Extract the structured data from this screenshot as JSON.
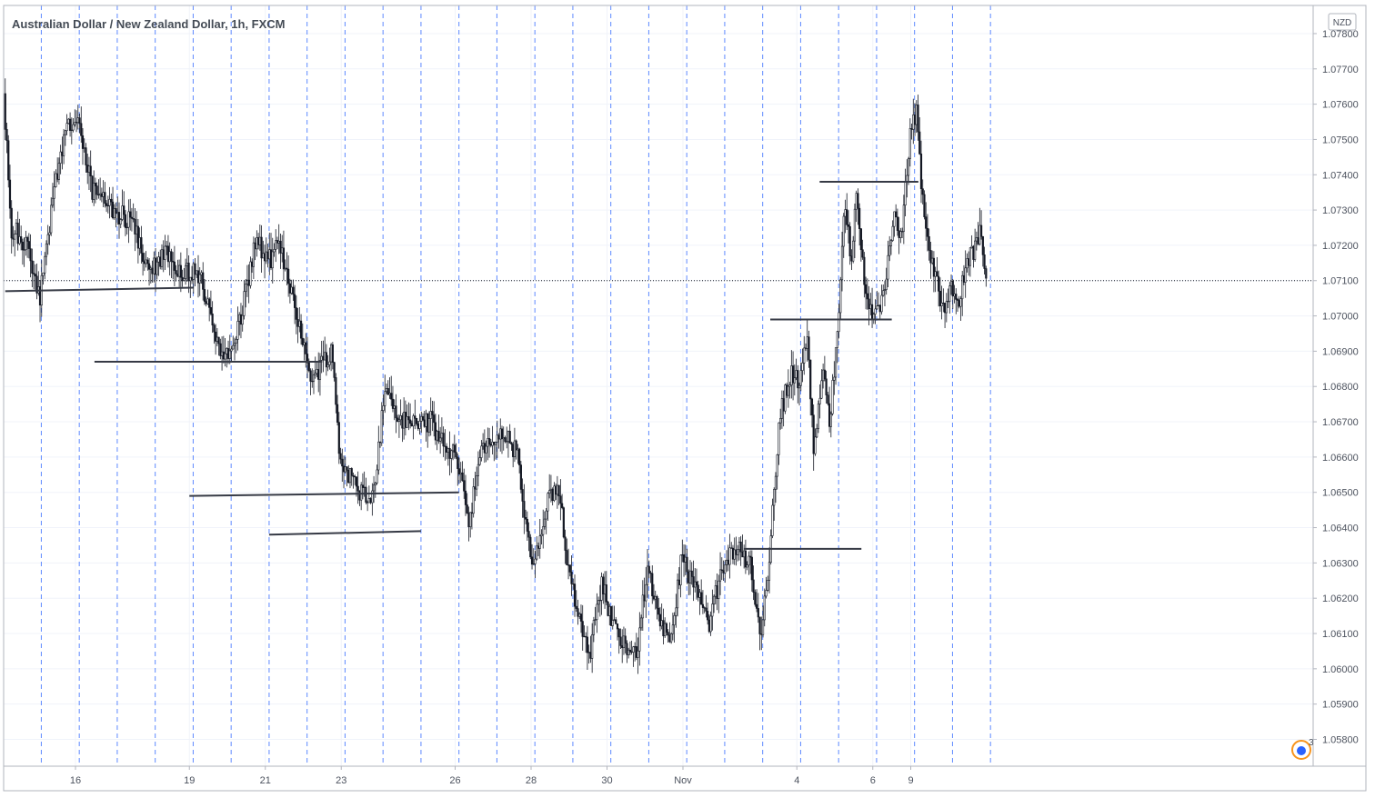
{
  "chart_data": {
    "type": "candlestick",
    "title": "Australian Dollar / New Zealand Dollar, 1h, FXCM",
    "currency": "NZD",
    "alert_count": "3",
    "y_ticks": [
      "1.05800",
      "1.05900",
      "1.06000",
      "1.06100",
      "1.06200",
      "1.06300",
      "1.06400",
      "1.06500",
      "1.06600",
      "1.06700",
      "1.06800",
      "1.06900",
      "1.07000",
      "1.07100",
      "1.07200",
      "1.07300",
      "1.07400",
      "1.07500",
      "1.07600",
      "1.07700",
      "1.07800"
    ],
    "ylim": [
      1.0575,
      1.0782
    ],
    "x_range_days": [
      14.1,
      40.2
    ],
    "x_ticks": [
      {
        "label": "16",
        "day": 16
      },
      {
        "label": "19",
        "day": 19
      },
      {
        "label": "21",
        "day": 21
      },
      {
        "label": "23",
        "day": 23
      },
      {
        "label": "26",
        "day": 26
      },
      {
        "label": "28",
        "day": 28
      },
      {
        "label": "30",
        "day": 30
      },
      {
        "label": "Nov",
        "day": 32
      },
      {
        "label": "4",
        "day": 35
      },
      {
        "label": "6",
        "day": 37
      },
      {
        "label": "9",
        "day": 38
      }
    ],
    "last_price": 1.071,
    "series": [
      {
        "name": "AUDNZD",
        "key_points": [
          [
            14.15,
            1.0763
          ],
          [
            14.35,
            1.0725
          ],
          [
            14.8,
            1.072
          ],
          [
            15.1,
            1.0705
          ],
          [
            15.4,
            1.073
          ],
          [
            15.8,
            1.0755
          ],
          [
            16.1,
            1.0755
          ],
          [
            16.5,
            1.0735
          ],
          [
            16.8,
            1.0732
          ],
          [
            17.3,
            1.0728
          ],
          [
            17.6,
            1.0725
          ],
          [
            18.0,
            1.0712
          ],
          [
            18.4,
            1.0718
          ],
          [
            18.8,
            1.0712
          ],
          [
            19.3,
            1.0712
          ],
          [
            19.5,
            1.0705
          ],
          [
            19.8,
            1.069
          ],
          [
            20.1,
            1.0688
          ],
          [
            20.4,
            1.07
          ],
          [
            20.8,
            1.0722
          ],
          [
            21.1,
            1.0715
          ],
          [
            21.4,
            1.072
          ],
          [
            21.8,
            1.0705
          ],
          [
            22.1,
            1.0688
          ],
          [
            22.3,
            1.0682
          ],
          [
            22.6,
            1.0688
          ],
          [
            22.8,
            1.069
          ],
          [
            23.0,
            1.066
          ],
          [
            23.5,
            1.065
          ],
          [
            23.9,
            1.065
          ],
          [
            24.2,
            1.068
          ],
          [
            24.6,
            1.067
          ],
          [
            25.0,
            1.067
          ],
          [
            25.4,
            1.067
          ],
          [
            25.8,
            1.0662
          ],
          [
            26.1,
            1.066
          ],
          [
            26.4,
            1.0642
          ],
          [
            26.7,
            1.066
          ],
          [
            27.0,
            1.0665
          ],
          [
            27.4,
            1.0666
          ],
          [
            27.7,
            1.066
          ],
          [
            27.9,
            1.064
          ],
          [
            28.1,
            1.0628
          ],
          [
            28.5,
            1.0648
          ],
          [
            28.8,
            1.065
          ],
          [
            29.0,
            1.063
          ],
          [
            29.3,
            1.0615
          ],
          [
            29.6,
            1.0605
          ],
          [
            29.9,
            1.0625
          ],
          [
            30.2,
            1.0612
          ],
          [
            30.5,
            1.0608
          ],
          [
            30.8,
            1.0603
          ],
          [
            31.1,
            1.0628
          ],
          [
            31.4,
            1.0616
          ],
          [
            31.7,
            1.0605
          ],
          [
            32.0,
            1.0632
          ],
          [
            32.4,
            1.0622
          ],
          [
            32.7,
            1.0612
          ],
          [
            33.0,
            1.0625
          ],
          [
            33.4,
            1.0635
          ],
          [
            33.8,
            1.063
          ],
          [
            34.1,
            1.061
          ],
          [
            34.3,
            1.063
          ],
          [
            34.6,
            1.0672
          ],
          [
            34.9,
            1.0685
          ],
          [
            35.1,
            1.068
          ],
          [
            35.3,
            1.0695
          ],
          [
            35.5,
            1.066
          ],
          [
            35.7,
            1.0685
          ],
          [
            35.9,
            1.067
          ],
          [
            36.1,
            1.0695
          ],
          [
            36.3,
            1.073
          ],
          [
            36.5,
            1.0715
          ],
          [
            36.6,
            1.0735
          ],
          [
            36.8,
            1.0712
          ],
          [
            37.0,
            1.0702
          ],
          [
            37.2,
            1.07
          ],
          [
            37.4,
            1.0712
          ],
          [
            37.6,
            1.073
          ],
          [
            37.8,
            1.072
          ],
          [
            38.0,
            1.075
          ],
          [
            38.2,
            1.0758
          ],
          [
            38.3,
            1.074
          ],
          [
            38.5,
            1.072
          ],
          [
            38.7,
            1.071
          ],
          [
            38.9,
            1.0702
          ],
          [
            39.1,
            1.071
          ],
          [
            39.3,
            1.0702
          ],
          [
            39.5,
            1.0715
          ],
          [
            39.7,
            1.0718
          ],
          [
            39.9,
            1.0725
          ],
          [
            40.0,
            1.071
          ]
        ]
      }
    ],
    "horizontal_lines": [
      {
        "x1": 14.15,
        "x2": 19.1,
        "y1": 1.0707,
        "y2": 1.0708
      },
      {
        "x1": 16.5,
        "x2": 22.5,
        "y1": 1.0687,
        "y2": 1.0687
      },
      {
        "x1": 19.0,
        "x2": 26.1,
        "y1": 1.0649,
        "y2": 1.065
      },
      {
        "x1": 21.1,
        "x2": 25.1,
        "y1": 1.0638,
        "y2": 1.0639
      },
      {
        "x1": 33.6,
        "x2": 36.7,
        "y1": 1.0634,
        "y2": 1.0634
      },
      {
        "x1": 34.3,
        "x2": 37.5,
        "y1": 1.0699,
        "y2": 1.0699
      },
      {
        "x1": 35.6,
        "x2": 38.2,
        "y1": 1.0738,
        "y2": 1.0738
      }
    ]
  }
}
